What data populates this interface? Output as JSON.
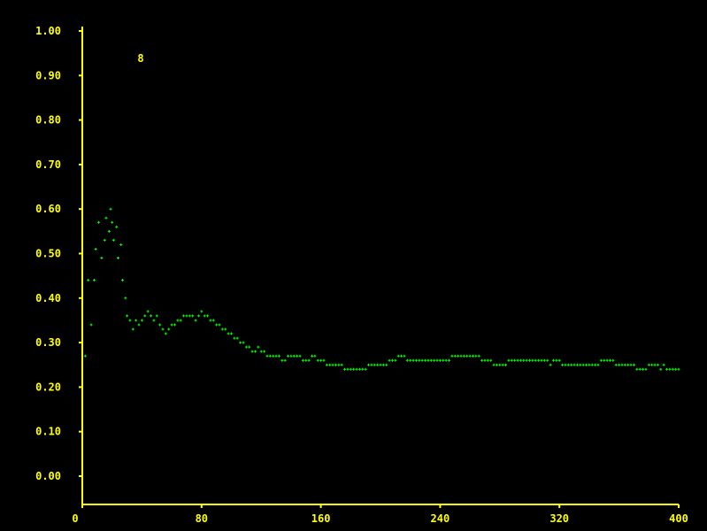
{
  "chart_data": {
    "type": "scatter",
    "title": "",
    "xlabel": "",
    "ylabel": "",
    "xlim": [
      0,
      400
    ],
    "ylim": [
      0,
      1.0
    ],
    "x_ticks": [
      "0",
      "80",
      "160",
      "240",
      "320",
      "400"
    ],
    "y_ticks": [
      "0.00",
      "0.10",
      "0.20",
      "0.30",
      "0.40",
      "0.50",
      "0.60",
      "0.70",
      "0.80",
      "0.90",
      "1.00"
    ],
    "annotation": "8",
    "grid": false,
    "series": [
      {
        "x": [
          2,
          4,
          6,
          8,
          9,
          11,
          13,
          15,
          16,
          18,
          19,
          20,
          21,
          23,
          24,
          26,
          27,
          29,
          30,
          32,
          34,
          36,
          38,
          40,
          42,
          44,
          46,
          48,
          50,
          52,
          54,
          56,
          58,
          60,
          62,
          64,
          66,
          68,
          70,
          72,
          74,
          76,
          78,
          80,
          82,
          84,
          86,
          88,
          90,
          92,
          94,
          96,
          98,
          100,
          102,
          104,
          106,
          108,
          110,
          112,
          114,
          116,
          118,
          120,
          122,
          124,
          126,
          128,
          130,
          132,
          134,
          136,
          138,
          140,
          142,
          144,
          146,
          148,
          150,
          152,
          154,
          156,
          158,
          160,
          162,
          164,
          166,
          168,
          170,
          172,
          174,
          176,
          178,
          180,
          182,
          184,
          186,
          188,
          190,
          192,
          194,
          196,
          198,
          200,
          202,
          204,
          206,
          208,
          210,
          212,
          214,
          216,
          218,
          220,
          222,
          224,
          226,
          228,
          230,
          232,
          234,
          236,
          238,
          240,
          242,
          244,
          246,
          248,
          250,
          252,
          254,
          256,
          258,
          260,
          262,
          264,
          266,
          268,
          270,
          272,
          274,
          276,
          278,
          280,
          282,
          284,
          286,
          288,
          290,
          292,
          294,
          296,
          298,
          300,
          302,
          304,
          306,
          308,
          310,
          312,
          314,
          316,
          318,
          320,
          322,
          324,
          326,
          328,
          330,
          332,
          334,
          336,
          338,
          340,
          342,
          344,
          346,
          348,
          350,
          352,
          354,
          356,
          358,
          360,
          362,
          364,
          366,
          368,
          370,
          372,
          374,
          376,
          378,
          380,
          382,
          384,
          386,
          388,
          390,
          392,
          394,
          396,
          398,
          400
        ],
        "y": [
          0.27,
          0.44,
          0.34,
          0.44,
          0.51,
          0.57,
          0.49,
          0.53,
          0.58,
          0.55,
          0.6,
          0.57,
          0.53,
          0.56,
          0.49,
          0.52,
          0.44,
          0.4,
          0.36,
          0.35,
          0.33,
          0.35,
          0.34,
          0.35,
          0.36,
          0.37,
          0.36,
          0.35,
          0.36,
          0.34,
          0.33,
          0.32,
          0.33,
          0.34,
          0.34,
          0.35,
          0.35,
          0.36,
          0.36,
          0.36,
          0.36,
          0.35,
          0.36,
          0.37,
          0.36,
          0.36,
          0.35,
          0.35,
          0.34,
          0.34,
          0.33,
          0.33,
          0.32,
          0.32,
          0.31,
          0.31,
          0.3,
          0.3,
          0.29,
          0.29,
          0.28,
          0.28,
          0.29,
          0.28,
          0.28,
          0.27,
          0.27,
          0.27,
          0.27,
          0.27,
          0.26,
          0.26,
          0.27,
          0.27,
          0.27,
          0.27,
          0.27,
          0.26,
          0.26,
          0.26,
          0.27,
          0.27,
          0.26,
          0.26,
          0.26,
          0.25,
          0.25,
          0.25,
          0.25,
          0.25,
          0.25,
          0.24,
          0.24,
          0.24,
          0.24,
          0.24,
          0.24,
          0.24,
          0.24,
          0.25,
          0.25,
          0.25,
          0.25,
          0.25,
          0.25,
          0.25,
          0.26,
          0.26,
          0.26,
          0.27,
          0.27,
          0.27,
          0.26,
          0.26,
          0.26,
          0.26,
          0.26,
          0.26,
          0.26,
          0.26,
          0.26,
          0.26,
          0.26,
          0.26,
          0.26,
          0.26,
          0.26,
          0.27,
          0.27,
          0.27,
          0.27,
          0.27,
          0.27,
          0.27,
          0.27,
          0.27,
          0.27,
          0.26,
          0.26,
          0.26,
          0.26,
          0.25,
          0.25,
          0.25,
          0.25,
          0.25,
          0.26,
          0.26,
          0.26,
          0.26,
          0.26,
          0.26,
          0.26,
          0.26,
          0.26,
          0.26,
          0.26,
          0.26,
          0.26,
          0.26,
          0.25,
          0.26,
          0.26,
          0.26,
          0.25,
          0.25,
          0.25,
          0.25,
          0.25,
          0.25,
          0.25,
          0.25,
          0.25,
          0.25,
          0.25,
          0.25,
          0.25,
          0.26,
          0.26,
          0.26,
          0.26,
          0.26,
          0.25,
          0.25,
          0.25,
          0.25,
          0.25,
          0.25,
          0.25,
          0.24,
          0.24,
          0.24,
          0.24,
          0.25,
          0.25,
          0.25,
          0.25,
          0.24,
          0.25,
          0.24,
          0.24,
          0.24,
          0.24,
          0.24
        ],
        "color": "#00ff00",
        "marker": "plus"
      }
    ],
    "colors": {
      "axis": "#ffff00",
      "labels": "#ffff00",
      "background": "#000000",
      "points": "#00ff00"
    }
  }
}
